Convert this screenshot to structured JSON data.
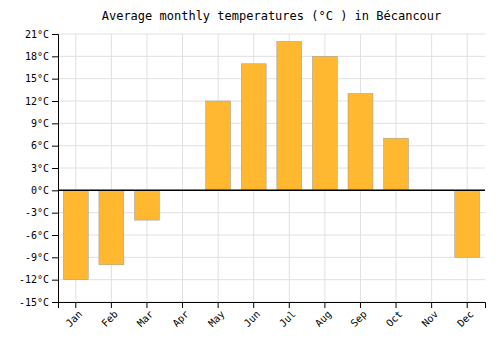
{
  "chart_data": {
    "type": "bar",
    "title": "Average monthly temperatures (°C ) in Bécancour",
    "categories": [
      "Jan",
      "Feb",
      "Mar",
      "Apr",
      "May",
      "Jun",
      "Jul",
      "Aug",
      "Sep",
      "Oct",
      "Nov",
      "Dec"
    ],
    "values": [
      -12,
      -10,
      -4,
      0,
      12,
      17,
      20,
      18,
      13,
      7,
      0,
      -9
    ],
    "color": "#FFB830",
    "ylim": [
      -15,
      21
    ],
    "yticks": [
      {
        "value": -15,
        "label": "-15°C"
      },
      {
        "value": -12,
        "label": "-12°C"
      },
      {
        "value": -9,
        "label": "-9°C"
      },
      {
        "value": -6,
        "label": "-6°C"
      },
      {
        "value": -3,
        "label": "-3°C"
      },
      {
        "value": 0,
        "label": "0°C"
      },
      {
        "value": 3,
        "label": "3°C"
      },
      {
        "value": 6,
        "label": "6°C"
      },
      {
        "value": 9,
        "label": "9°C"
      },
      {
        "value": 12,
        "label": "12°C"
      },
      {
        "value": 15,
        "label": "15°C"
      },
      {
        "value": 18,
        "label": "18°C"
      },
      {
        "value": 21,
        "label": "21°C"
      }
    ],
    "grid": true
  }
}
